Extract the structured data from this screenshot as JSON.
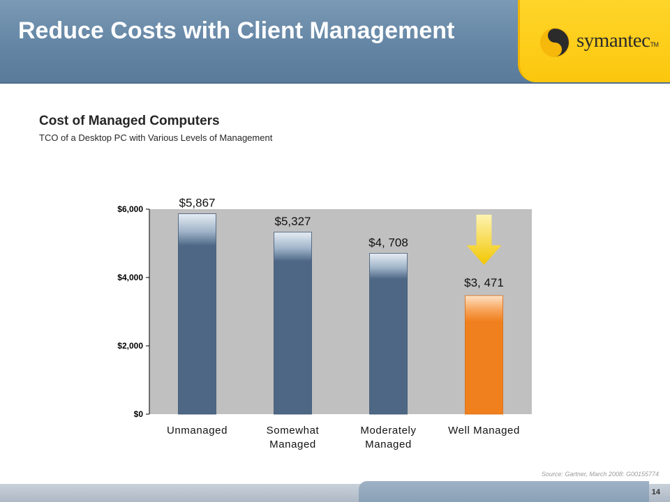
{
  "slide": {
    "title": "Reduce Costs with Client Management",
    "source": "Source: Gartner, March 2008: G00155774",
    "page_number": "14"
  },
  "logo": {
    "name": "symantec",
    "trademark": "TM",
    "icon": "symantec-swirl-icon"
  },
  "colors": {
    "header_blue": "#6485a4",
    "logo_yellow": "#fbc70d",
    "bar_blue": "#4d6785",
    "bar_orange": "#f07f1d",
    "plot_background": "#c0c0c0"
  },
  "chart_data": {
    "type": "bar",
    "title": "Cost of Managed Computers",
    "subtitle": "TCO of a Desktop PC with Various Levels of Management",
    "categories": [
      [
        "Unmanaged"
      ],
      [
        "Somewhat",
        "Managed"
      ],
      [
        "Moderately",
        "Managed"
      ],
      [
        "Well Managed"
      ]
    ],
    "values": [
      5867,
      5327,
      4708,
      3471
    ],
    "data_labels": [
      "$5,867",
      "$5,327",
      "$4, 708",
      "$3, 471"
    ],
    "highlight_index": 3,
    "ylim": [
      0,
      6000
    ],
    "yticks": [
      0,
      2000,
      4000,
      6000
    ],
    "ytick_labels": [
      "$0",
      "$2,000",
      "$4,000",
      "$6,000"
    ],
    "grid": false,
    "annotation": "down-arrow-icon above Well Managed bar"
  }
}
